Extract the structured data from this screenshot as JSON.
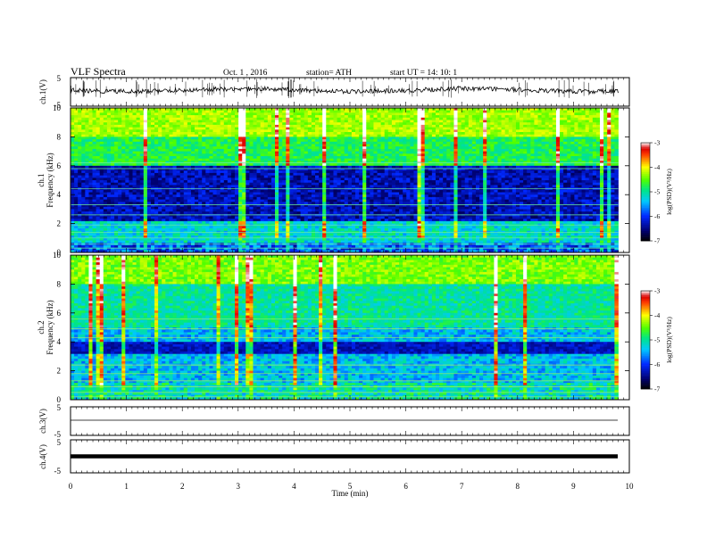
{
  "header": {
    "title": "VLF  Spectra",
    "date": "Oct. 1  , 2016",
    "station": "station= ATH",
    "start_ut": "start  UT  =    14: 10: 1"
  },
  "chart_data": [
    {
      "type": "line",
      "id": "ch1-waveform",
      "ylabel": "ch.1(V)",
      "ytick_labels": [
        "5",
        "-5"
      ],
      "ylim": [
        -5,
        5
      ],
      "xlim": [
        0,
        10
      ]
    },
    {
      "type": "heatmap",
      "id": "ch1-spectrogram",
      "ylabel_lines": [
        "ch.1",
        "Frequency  (kHz)"
      ],
      "yticks": [
        0,
        2,
        4,
        6,
        8,
        10
      ],
      "ylim": [
        0,
        10
      ],
      "xlim": [
        0,
        10
      ],
      "data_end_min": 9.8,
      "colorbar": {
        "label": "log(PSD)(V²/Hz)",
        "ticks": [
          -3,
          -4,
          -5,
          -6,
          -7
        ],
        "range": [
          -7,
          -3
        ]
      }
    },
    {
      "type": "heatmap",
      "id": "ch2-spectrogram",
      "ylabel_lines": [
        "ch.2",
        "Frequency  (kHz)"
      ],
      "yticks": [
        0,
        2,
        4,
        6,
        8,
        10
      ],
      "ylim": [
        0,
        10
      ],
      "xlim": [
        0,
        10
      ],
      "data_end_min": 9.8,
      "colorbar": {
        "label": "log(PSD)(V²/Hz)",
        "ticks": [
          -3,
          -4,
          -5,
          -6,
          -7
        ],
        "range": [
          -7,
          -3
        ]
      }
    },
    {
      "type": "line",
      "id": "ch3-waveform",
      "ylabel": "ch.3(V)",
      "ytick_labels": [
        "5",
        "-5"
      ],
      "ylim": [
        -5,
        5
      ],
      "xlim": [
        0,
        10
      ]
    },
    {
      "type": "line",
      "id": "ch4-waveform",
      "ylabel": "ch.4(V)",
      "ytick_labels": [
        "5",
        "-5"
      ],
      "ylim": [
        -5,
        5
      ],
      "xlim": [
        0,
        10
      ]
    }
  ],
  "xaxis": {
    "label": "Time  (min)",
    "ticks": [
      "0",
      "1",
      "2",
      "3",
      "4",
      "5",
      "6",
      "7",
      "8",
      "9",
      "10"
    ]
  }
}
